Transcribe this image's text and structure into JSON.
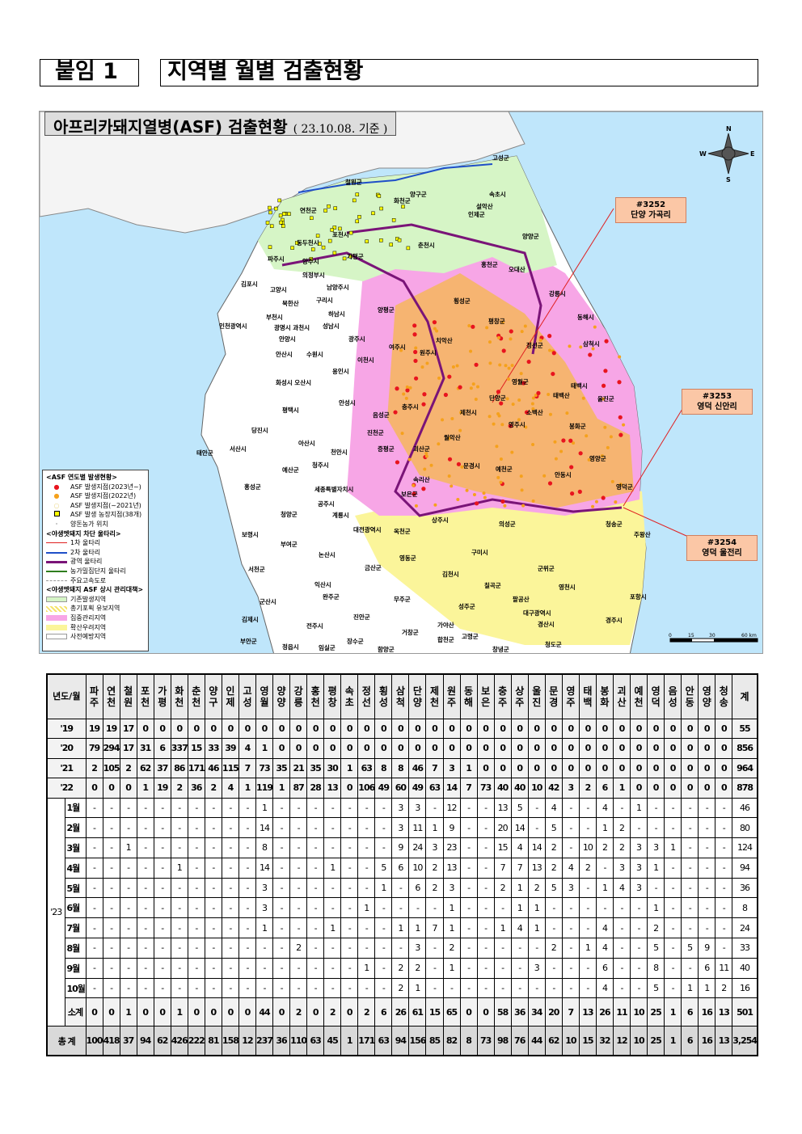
{
  "header": {
    "attachment": "붙임 1",
    "title": "지역별 월별 검출현황"
  },
  "map": {
    "title": "아프리카돼지열병(ASF) 검출현황",
    "date": "( 23.10.08. 기준 )",
    "compass": {
      "n": "N",
      "s": "S",
      "e": "E",
      "w": "W"
    },
    "scale": {
      "ticks": [
        "0",
        "15",
        "30",
        "60 km"
      ]
    },
    "callouts": [
      {
        "id": "#3252",
        "place": "단양 가곡리"
      },
      {
        "id": "#3253",
        "place": "영덕 신안리"
      },
      {
        "id": "#3254",
        "place": "영덕 울전리"
      }
    ],
    "labels": [
      "고성군",
      "철원군",
      "양구군",
      "속초시",
      "화천군",
      "인제군",
      "연천군",
      "양양군",
      "동두천시",
      "포천시",
      "춘천시",
      "파주시",
      "양주시",
      "가평군",
      "홍천군",
      "의정부시",
      "강릉시",
      "김포시",
      "고양시",
      "남양주시",
      "구리시",
      "횡성군",
      "양평군",
      "동해시",
      "평창군",
      "부천시",
      "하남시",
      "인천광역시",
      "광명시 과천시",
      "성남시",
      "안양시",
      "광주시",
      "여주시",
      "원주시",
      "정선군",
      "삼척시",
      "안산시",
      "수원시",
      "이천시",
      "용인시",
      "영월군",
      "태백시",
      "화성시 오산시",
      "제천시",
      "단양군",
      "울진군",
      "안성시",
      "평택시",
      "음성군",
      "충주시",
      "영주시",
      "봉화군",
      "당진시",
      "진천군",
      "괴산군",
      "서산시",
      "아산시",
      "천안시",
      "증평군",
      "문경시",
      "예천군",
      "영양군",
      "태안군",
      "예산군",
      "청주시",
      "세종특별자치시",
      "안동시",
      "영덕군",
      "홍성군",
      "공주시",
      "보은군",
      "상주시",
      "청송군",
      "주왕산",
      "보령시",
      "청양군",
      "계룡시",
      "대전광역시",
      "옥천군",
      "의성군",
      "부여군",
      "논산시",
      "구미시",
      "영동군",
      "서천군",
      "금산군",
      "김천시",
      "군위군",
      "포항시",
      "익산시",
      "완주군",
      "칠곡군",
      "영천시",
      "군산시",
      "무주군",
      "성주군",
      "대구광역시",
      "경산시",
      "김제시",
      "전주시",
      "진안군",
      "거창군",
      "경주시",
      "가야산",
      "부안군",
      "장수군",
      "합천군",
      "고령군",
      "정읍시",
      "임실군",
      "함양군",
      "창녕군",
      "청도군",
      "북한산",
      "치악산",
      "오대산",
      "설악산",
      "태백산",
      "소백산",
      "월악산",
      "속리산",
      "팔공산"
    ],
    "legend": {
      "h1": "<ASF 연도별 발생현황>",
      "items1": [
        "ASF 발생지점(2023년~)",
        "ASF 발생지점(2022년)",
        "ASF 발생지점(~2021년)",
        "ASF 발생 농장지점(38개)",
        "양돈농가 위치"
      ],
      "h2": "<야생멧돼지 차단 울타리>",
      "items2": [
        "1차 울타리",
        "2차 울타리",
        "광역 울타리",
        "농가밀집단지 울타리",
        "주요고속도로"
      ],
      "h3": "<야생멧돼지 ASF 상시 관리대책>",
      "items3": [
        "기존발생지역",
        "총기포획 유보지역",
        "집중관리지역",
        "확산우려지역",
        "사전예방지역"
      ]
    },
    "colors": {
      "sea": "#bfe6fb",
      "existing": "#d6f5c6",
      "hunting_reserved": "#f5e36a",
      "intensive": "#f7a6e6",
      "spread_concern": "#fbf59a",
      "prevention": "#ffffff",
      "case_2023": "#e8141e",
      "case_2022": "#f5a11c",
      "case_2021": "#fdf7c0",
      "fence1": "#e02020",
      "fence2": "#1f4fc8",
      "fence_wide": "#7a1478",
      "fence_farm": "#2e7d1e"
    }
  },
  "table": {
    "corner": "년도/월",
    "regions": [
      "파주",
      "연천",
      "철원",
      "포천",
      "가평",
      "화천",
      "춘천",
      "양구",
      "인제",
      "고성",
      "영월",
      "양양",
      "강릉",
      "홍천",
      "평창",
      "속초",
      "정선",
      "횡성",
      "삼척",
      "단양",
      "제천",
      "원주",
      "동해",
      "보은",
      "충주",
      "상주",
      "울진",
      "문경",
      "영주",
      "태백",
      "봉화",
      "괴산",
      "예천",
      "영덕",
      "음성",
      "안동",
      "영양",
      "청송"
    ],
    "total_label": "계",
    "year_rows": [
      {
        "label": "'19",
        "values": [
          "19",
          "19",
          "17",
          "0",
          "0",
          "0",
          "0",
          "0",
          "0",
          "0",
          "0",
          "0",
          "0",
          "0",
          "0",
          "0",
          "0",
          "0",
          "0",
          "0",
          "0",
          "0",
          "0",
          "0",
          "0",
          "0",
          "0",
          "0",
          "0",
          "0",
          "0",
          "0",
          "0",
          "0",
          "0",
          "0",
          "0",
          "0"
        ],
        "total": "55"
      },
      {
        "label": "'20",
        "values": [
          "79",
          "294",
          "17",
          "31",
          "6",
          "337",
          "15",
          "33",
          "39",
          "4",
          "1",
          "0",
          "0",
          "0",
          "0",
          "0",
          "0",
          "0",
          "0",
          "0",
          "0",
          "0",
          "0",
          "0",
          "0",
          "0",
          "0",
          "0",
          "0",
          "0",
          "0",
          "0",
          "0",
          "0",
          "0",
          "0",
          "0",
          "0"
        ],
        "total": "856"
      },
      {
        "label": "'21",
        "values": [
          "2",
          "105",
          "2",
          "62",
          "37",
          "86",
          "171",
          "46",
          "115",
          "7",
          "73",
          "35",
          "21",
          "35",
          "30",
          "1",
          "63",
          "8",
          "8",
          "46",
          "7",
          "3",
          "1",
          "0",
          "0",
          "0",
          "0",
          "0",
          "0",
          "0",
          "0",
          "0",
          "0",
          "0",
          "0",
          "0",
          "0",
          "0"
        ],
        "total": "964"
      },
      {
        "label": "'22",
        "values": [
          "0",
          "0",
          "0",
          "1",
          "19",
          "2",
          "36",
          "2",
          "4",
          "1",
          "119",
          "1",
          "87",
          "28",
          "13",
          "0",
          "106",
          "49",
          "60",
          "49",
          "63",
          "14",
          "7",
          "73",
          "40",
          "40",
          "10",
          "42",
          "3",
          "2",
          "6",
          "1",
          "0",
          "0",
          "0",
          "0",
          "0",
          "0"
        ],
        "total": "878"
      }
    ],
    "year_2023_label": "'23",
    "month_rows": [
      {
        "label": "1월",
        "values": [
          "-",
          "-",
          "-",
          "-",
          "-",
          "-",
          "-",
          "-",
          "-",
          "-",
          "1",
          "-",
          "-",
          "-",
          "-",
          "-",
          "-",
          "-",
          "3",
          "3",
          "-",
          "12",
          "-",
          "-",
          "13",
          "5",
          "-",
          "4",
          "-",
          "-",
          "4",
          "-",
          "1",
          "-",
          "-",
          "-",
          "-",
          "-"
        ],
        "total": "46"
      },
      {
        "label": "2월",
        "values": [
          "-",
          "-",
          "-",
          "-",
          "-",
          "-",
          "-",
          "-",
          "-",
          "-",
          "14",
          "-",
          "-",
          "-",
          "-",
          "-",
          "-",
          "-",
          "3",
          "11",
          "1",
          "9",
          "-",
          "-",
          "20",
          "14",
          "-",
          "5",
          "-",
          "-",
          "1",
          "2",
          "-",
          "-",
          "-",
          "-",
          "-",
          "-"
        ],
        "total": "80"
      },
      {
        "label": "3월",
        "values": [
          "-",
          "-",
          "1",
          "-",
          "-",
          "-",
          "-",
          "-",
          "-",
          "-",
          "8",
          "-",
          "-",
          "-",
          "-",
          "-",
          "-",
          "-",
          "9",
          "24",
          "3",
          "23",
          "-",
          "-",
          "15",
          "4",
          "14",
          "2",
          "-",
          "10",
          "2",
          "2",
          "3",
          "3",
          "1",
          "-",
          "-",
          "-"
        ],
        "total": "124"
      },
      {
        "label": "4월",
        "values": [
          "-",
          "-",
          "-",
          "-",
          "-",
          "1",
          "-",
          "-",
          "-",
          "-",
          "14",
          "-",
          "-",
          "-",
          "1",
          "-",
          "-",
          "5",
          "6",
          "10",
          "2",
          "13",
          "-",
          "-",
          "7",
          "7",
          "13",
          "2",
          "4",
          "2",
          "-",
          "3",
          "3",
          "1",
          "-",
          "-",
          "-",
          "-"
        ],
        "total": "94"
      },
      {
        "label": "5월",
        "values": [
          "-",
          "-",
          "-",
          "-",
          "-",
          "-",
          "-",
          "-",
          "-",
          "-",
          "3",
          "-",
          "-",
          "-",
          "-",
          "-",
          "-",
          "1",
          "-",
          "6",
          "2",
          "3",
          "-",
          "-",
          "2",
          "1",
          "2",
          "5",
          "3",
          "-",
          "1",
          "4",
          "3",
          "-",
          "-",
          "-",
          "-",
          "-"
        ],
        "total": "36"
      },
      {
        "label": "6월",
        "values": [
          "-",
          "-",
          "-",
          "-",
          "-",
          "-",
          "-",
          "-",
          "-",
          "-",
          "3",
          "-",
          "-",
          "-",
          "-",
          "-",
          "1",
          "-",
          "-",
          "-",
          "-",
          "1",
          "-",
          "-",
          "-",
          "1",
          "1",
          "-",
          "-",
          "-",
          "-",
          "-",
          "-",
          "1",
          "-",
          "-",
          "-",
          "-"
        ],
        "total": "8"
      },
      {
        "label": "7월",
        "values": [
          "-",
          "-",
          "-",
          "-",
          "-",
          "-",
          "-",
          "-",
          "-",
          "-",
          "1",
          "-",
          "-",
          "-",
          "1",
          "-",
          "-",
          "-",
          "1",
          "1",
          "7",
          "1",
          "-",
          "-",
          "1",
          "4",
          "1",
          "-",
          "-",
          "-",
          "4",
          "-",
          "-",
          "2",
          "-",
          "-",
          "-",
          "-"
        ],
        "total": "24"
      },
      {
        "label": "8월",
        "values": [
          "-",
          "-",
          "-",
          "-",
          "-",
          "-",
          "-",
          "-",
          "-",
          "-",
          "-",
          "-",
          "2",
          "-",
          "-",
          "-",
          "-",
          "-",
          "-",
          "3",
          "-",
          "2",
          "-",
          "-",
          "-",
          "-",
          "-",
          "2",
          "-",
          "1",
          "4",
          "-",
          "-",
          "5",
          "-",
          "5",
          "9",
          "-"
        ],
        "total": "33"
      },
      {
        "label": "9월",
        "values": [
          "-",
          "-",
          "-",
          "-",
          "-",
          "-",
          "-",
          "-",
          "-",
          "-",
          "-",
          "-",
          "-",
          "-",
          "-",
          "-",
          "1",
          "-",
          "2",
          "2",
          "-",
          "1",
          "-",
          "-",
          "-",
          "-",
          "3",
          "-",
          "-",
          "-",
          "6",
          "-",
          "-",
          "8",
          "-",
          "-",
          "6",
          "11"
        ],
        "total": "40"
      },
      {
        "label": "10월",
        "values": [
          "-",
          "-",
          "-",
          "-",
          "-",
          "-",
          "-",
          "-",
          "-",
          "-",
          "-",
          "-",
          "-",
          "-",
          "-",
          "-",
          "-",
          "-",
          "2",
          "1",
          "-",
          "-",
          "-",
          "-",
          "-",
          "-",
          "-",
          "-",
          "-",
          "-",
          "4",
          "-",
          "-",
          "5",
          "-",
          "1",
          "1",
          "2"
        ],
        "total": "16"
      }
    ],
    "subtotal": {
      "label": "소계",
      "values": [
        "0",
        "0",
        "1",
        "0",
        "0",
        "1",
        "0",
        "0",
        "0",
        "0",
        "44",
        "0",
        "2",
        "0",
        "2",
        "0",
        "2",
        "6",
        "26",
        "61",
        "15",
        "65",
        "0",
        "0",
        "58",
        "36",
        "34",
        "20",
        "7",
        "13",
        "26",
        "11",
        "10",
        "25",
        "1",
        "6",
        "16",
        "13"
      ],
      "total": "501"
    },
    "grand_total": {
      "label": "총 계",
      "values": [
        "100",
        "418",
        "37",
        "94",
        "62",
        "426",
        "222",
        "81",
        "158",
        "12",
        "237",
        "36",
        "110",
        "63",
        "45",
        "1",
        "171",
        "63",
        "94",
        "156",
        "85",
        "82",
        "8",
        "73",
        "98",
        "76",
        "44",
        "62",
        "10",
        "15",
        "32",
        "12",
        "10",
        "25",
        "1",
        "6",
        "16",
        "13"
      ],
      "total": "3,254"
    }
  }
}
